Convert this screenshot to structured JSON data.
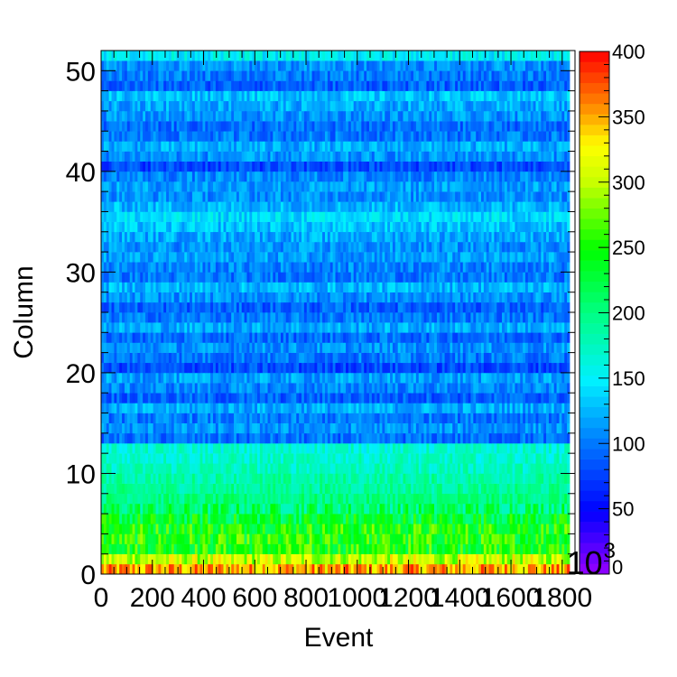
{
  "chart_data": {
    "type": "heatmap",
    "title": "",
    "xlabel": "Event",
    "ylabel": "Column",
    "xlim": [
      0,
      1850
    ],
    "ylim": [
      0,
      52
    ],
    "x_ticks": [
      "0",
      "200",
      "400",
      "600",
      "800",
      "1000",
      "1200",
      "1400",
      "1600",
      "1800"
    ],
    "y_ticks": [
      "0",
      "10",
      "20",
      "30",
      "40",
      "50"
    ],
    "colorbar": {
      "range": [
        0,
        400
      ],
      "ticks": [
        "0",
        "50",
        "100",
        "150",
        "200",
        "250",
        "300",
        "350",
        "400"
      ],
      "exponent_label": "10",
      "exponent": "3"
    },
    "row_mean_values": [
      350,
      300,
      250,
      250,
      250,
      230,
      210,
      200,
      190,
      185,
      175,
      170,
      165,
      95,
      110,
      100,
      120,
      90,
      105,
      115,
      80,
      100,
      110,
      95,
      120,
      100,
      90,
      110,
      125,
      100,
      105,
      115,
      110,
      120,
      130,
      140,
      125,
      110,
      115,
      105,
      80,
      110,
      120,
      100,
      95,
      110,
      120,
      130,
      90,
      100,
      110,
      150
    ],
    "grid": false,
    "legend": "none"
  }
}
